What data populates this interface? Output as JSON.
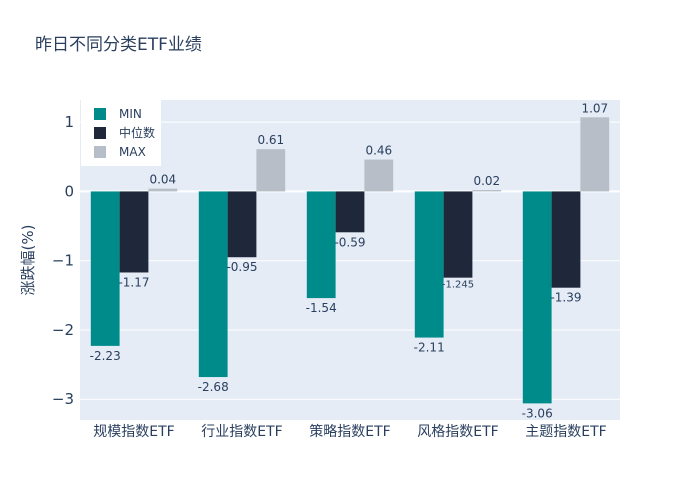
{
  "chart_data": {
    "type": "bar",
    "title": "昨日不同分类ETF业绩",
    "xlabel": "",
    "ylabel": "涨跌幅(%)",
    "ylim": [
      -3.3,
      1.32
    ],
    "yticks": [
      -3,
      -2,
      -1,
      0,
      1
    ],
    "ytick_labels": [
      "−3",
      "−2",
      "−1",
      "0",
      "1"
    ],
    "grid": true,
    "legend_position": "top-left",
    "categories": [
      "规模指数ETF",
      "行业指数ETF",
      "策略指数ETF",
      "风格指数ETF",
      "主题指数ETF"
    ],
    "series": [
      {
        "name": "MIN",
        "color": "#008b8b",
        "values": [
          -2.23,
          -2.68,
          -1.54,
          -2.11,
          -3.06
        ],
        "labels": [
          "-2.23",
          "-2.68",
          "-1.54",
          "-2.11",
          "-3.06"
        ]
      },
      {
        "name": "中位数",
        "color": "#1f283b",
        "values": [
          -1.17,
          -0.95,
          -0.59,
          -1.245,
          -1.39
        ],
        "labels": [
          "-1.17",
          "-0.95",
          "-0.59",
          "-1.245",
          "-1.39"
        ]
      },
      {
        "name": "MAX",
        "color": "#b7bec8",
        "values": [
          0.04,
          0.61,
          0.46,
          0.02,
          1.07
        ],
        "labels": [
          "0.04",
          "0.61",
          "0.46",
          "0.02",
          "1.07"
        ]
      }
    ]
  }
}
